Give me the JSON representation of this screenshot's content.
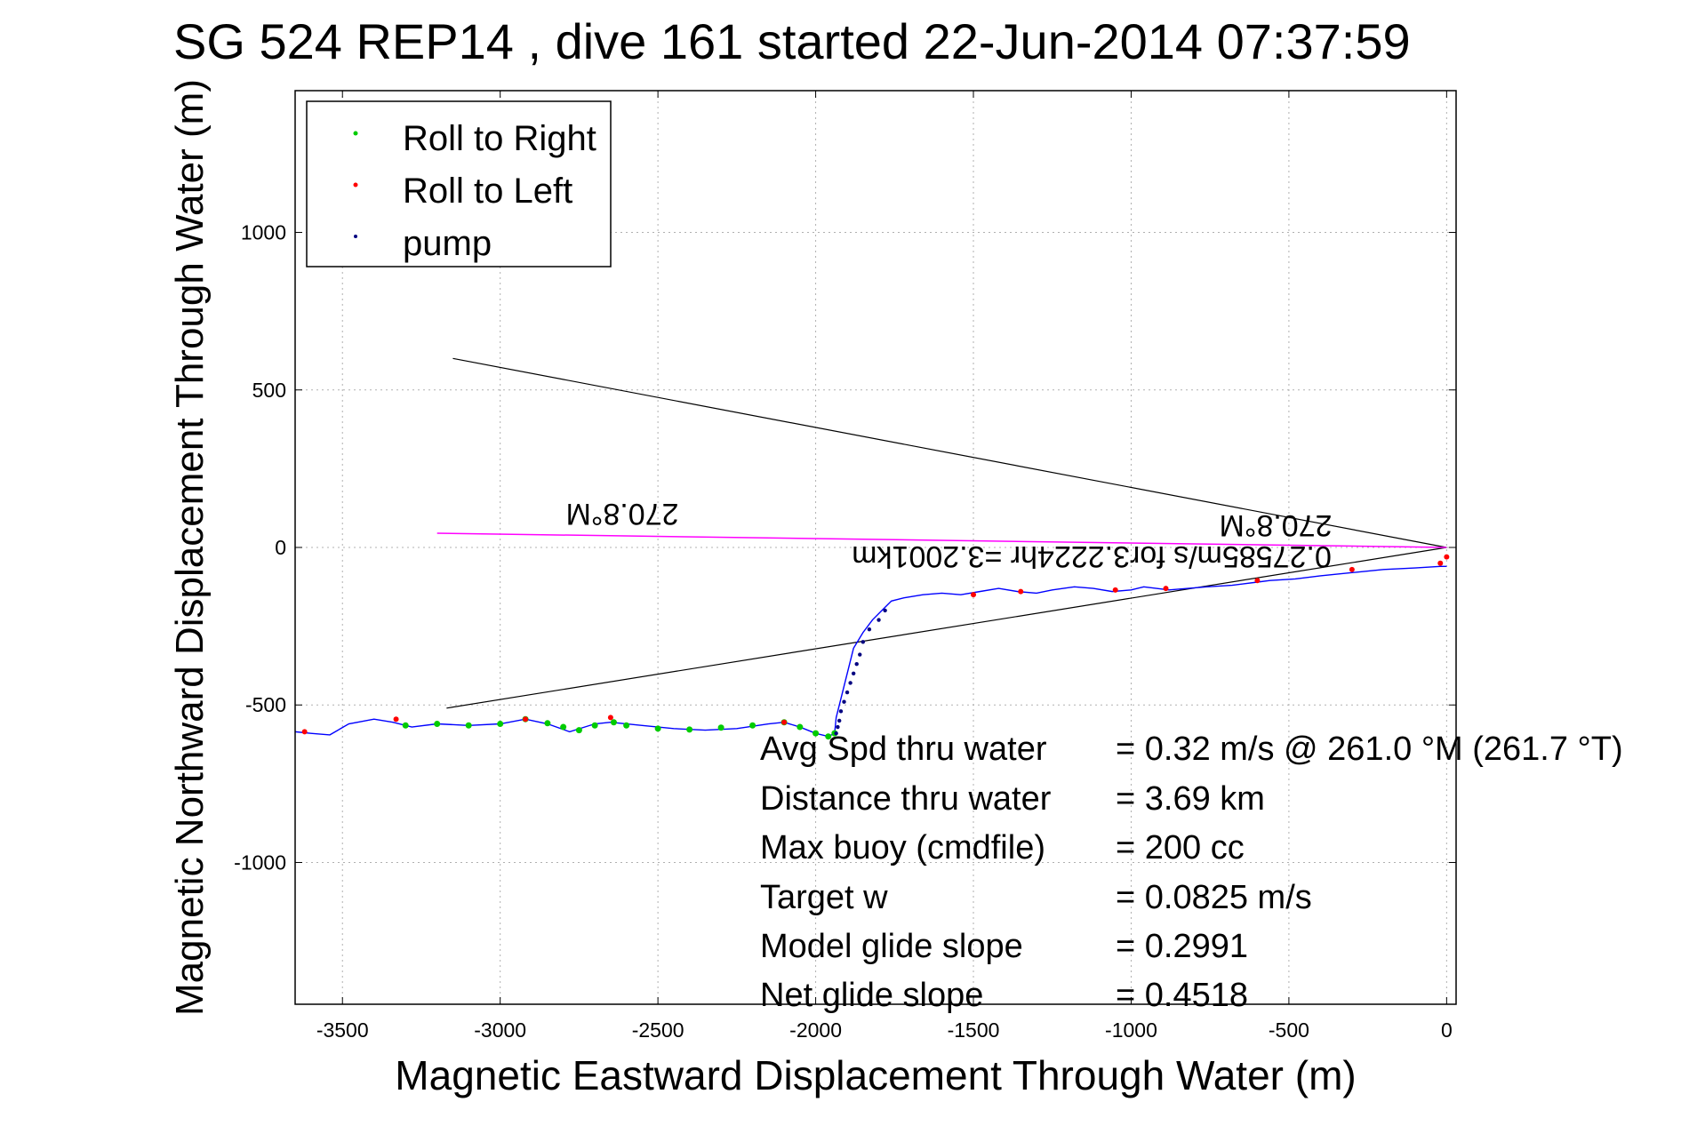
{
  "chart_data": {
    "type": "scatter",
    "title": "SG 524   REP14  , dive 161 started 22-Jun-2014 07:37:59",
    "xlabel": "Magnetic Eastward Displacement Through Water (m)",
    "ylabel": "Magnetic Northward Displacement Through Water (m)",
    "xlim": [
      -3650,
      30
    ],
    "ylim": [
      -1450,
      1450
    ],
    "xticks": [
      -3500,
      -3000,
      -2500,
      -2000,
      -1500,
      -1000,
      -500,
      0
    ],
    "yticks": [
      -1000,
      -500,
      0,
      500,
      1000
    ],
    "grid": true,
    "legend_position": "top-left",
    "legend": [
      {
        "label": "Roll to Right",
        "color": "#00cc00"
      },
      {
        "label": "Roll to Left",
        "color": "#ff0000"
      },
      {
        "label": "pump",
        "color": "#000080"
      }
    ],
    "track": {
      "color": "#0000ff",
      "x": [
        0,
        -20,
        -100,
        -200,
        -300,
        -400,
        -480,
        -560,
        -600,
        -680,
        -760,
        -820,
        -880,
        -920,
        -960,
        -1000,
        -1060,
        -1120,
        -1180,
        -1250,
        -1300,
        -1360,
        -1420,
        -1480,
        -1540,
        -1600,
        -1660,
        -1720,
        -1760,
        -1790,
        -1820,
        -1850,
        -1880,
        -1900,
        -1920,
        -1935,
        -1940,
        -1960,
        -2000,
        -2050,
        -2100,
        -2150,
        -2250,
        -2350,
        -2450,
        -2550,
        -2650,
        -2700,
        -2780,
        -2850,
        -2920,
        -3000,
        -3100,
        -3200,
        -3280,
        -3340,
        -3400,
        -3480,
        -3540,
        -3600,
        -3650
      ],
      "y": [
        -60,
        -60,
        -65,
        -70,
        -80,
        -90,
        -100,
        -105,
        -110,
        -120,
        -125,
        -130,
        -135,
        -130,
        -125,
        -135,
        -140,
        -130,
        -125,
        -135,
        -145,
        -140,
        -130,
        -140,
        -150,
        -145,
        -150,
        -160,
        -170,
        -200,
        -230,
        -270,
        -320,
        -400,
        -480,
        -540,
        -590,
        -600,
        -590,
        -570,
        -555,
        -560,
        -575,
        -580,
        -575,
        -565,
        -555,
        -560,
        -585,
        -560,
        -545,
        -560,
        -565,
        -560,
        -570,
        -555,
        -545,
        -560,
        -595,
        -590,
        -585
      ]
    },
    "roll_right": {
      "x": [
        -1940,
        -1960,
        -2000,
        -2050,
        -2100,
        -2200,
        -2300,
        -2400,
        -2500,
        -2600,
        -2640,
        -2700,
        -2750,
        -2800,
        -2850,
        -2920,
        -3000,
        -3100,
        -3200,
        -3300
      ],
      "y": [
        -590,
        -600,
        -590,
        -570,
        -555,
        -565,
        -572,
        -578,
        -575,
        -565,
        -555,
        -565,
        -580,
        -570,
        -558,
        -545,
        -560,
        -565,
        -560,
        -565
      ]
    },
    "roll_left": {
      "x": [
        0,
        -20,
        -300,
        -600,
        -890,
        -1050,
        -1350,
        -1500,
        -2100,
        -2650,
        -2920,
        -3330,
        -3620
      ],
      "y": [
        -30,
        -50,
        -70,
        -105,
        -130,
        -135,
        -140,
        -150,
        -555,
        -540,
        -545,
        -545,
        -585
      ]
    },
    "pump": {
      "x": [
        -1935,
        -1930,
        -1925,
        -1920,
        -1910,
        -1900,
        -1890,
        -1880,
        -1870,
        -1860,
        -1850,
        -1830,
        -1800,
        -1780
      ],
      "y": [
        -590,
        -570,
        -550,
        -520,
        -490,
        -460,
        -430,
        -400,
        -370,
        -340,
        -300,
        -260,
        -230,
        -200
      ]
    },
    "lines": [
      {
        "color": "#000000",
        "x": [
          0,
          -3150
        ],
        "y": [
          0,
          600
        ]
      },
      {
        "color": "#000000",
        "x": [
          0,
          -3170
        ],
        "y": [
          0,
          -510
        ]
      },
      {
        "color": "#ff00ff",
        "x": [
          0,
          -3200
        ],
        "y": [
          0,
          45
        ]
      }
    ],
    "plot_text": [
      {
        "text": "270.8°M"
      },
      {
        "text": "270.8°M"
      },
      {
        "text": "0.27585m/s for3.2224hr =3.2001km"
      }
    ],
    "annotations": [
      {
        "label": "Avg Spd thru water",
        "value": "=  0.32 m/s @ 261.0 °M (261.7 °T)"
      },
      {
        "label": "Distance thru water",
        "value": "=  3.69 km"
      },
      {
        "label": "Max buoy (cmdfile)",
        "value": "= 200 cc"
      },
      {
        "label": "Target w",
        "value": "= 0.0825 m/s"
      },
      {
        "label": "Model glide slope",
        "value": "= 0.2991"
      },
      {
        "label": "Net glide slope",
        "value": "= 0.4518"
      }
    ]
  }
}
